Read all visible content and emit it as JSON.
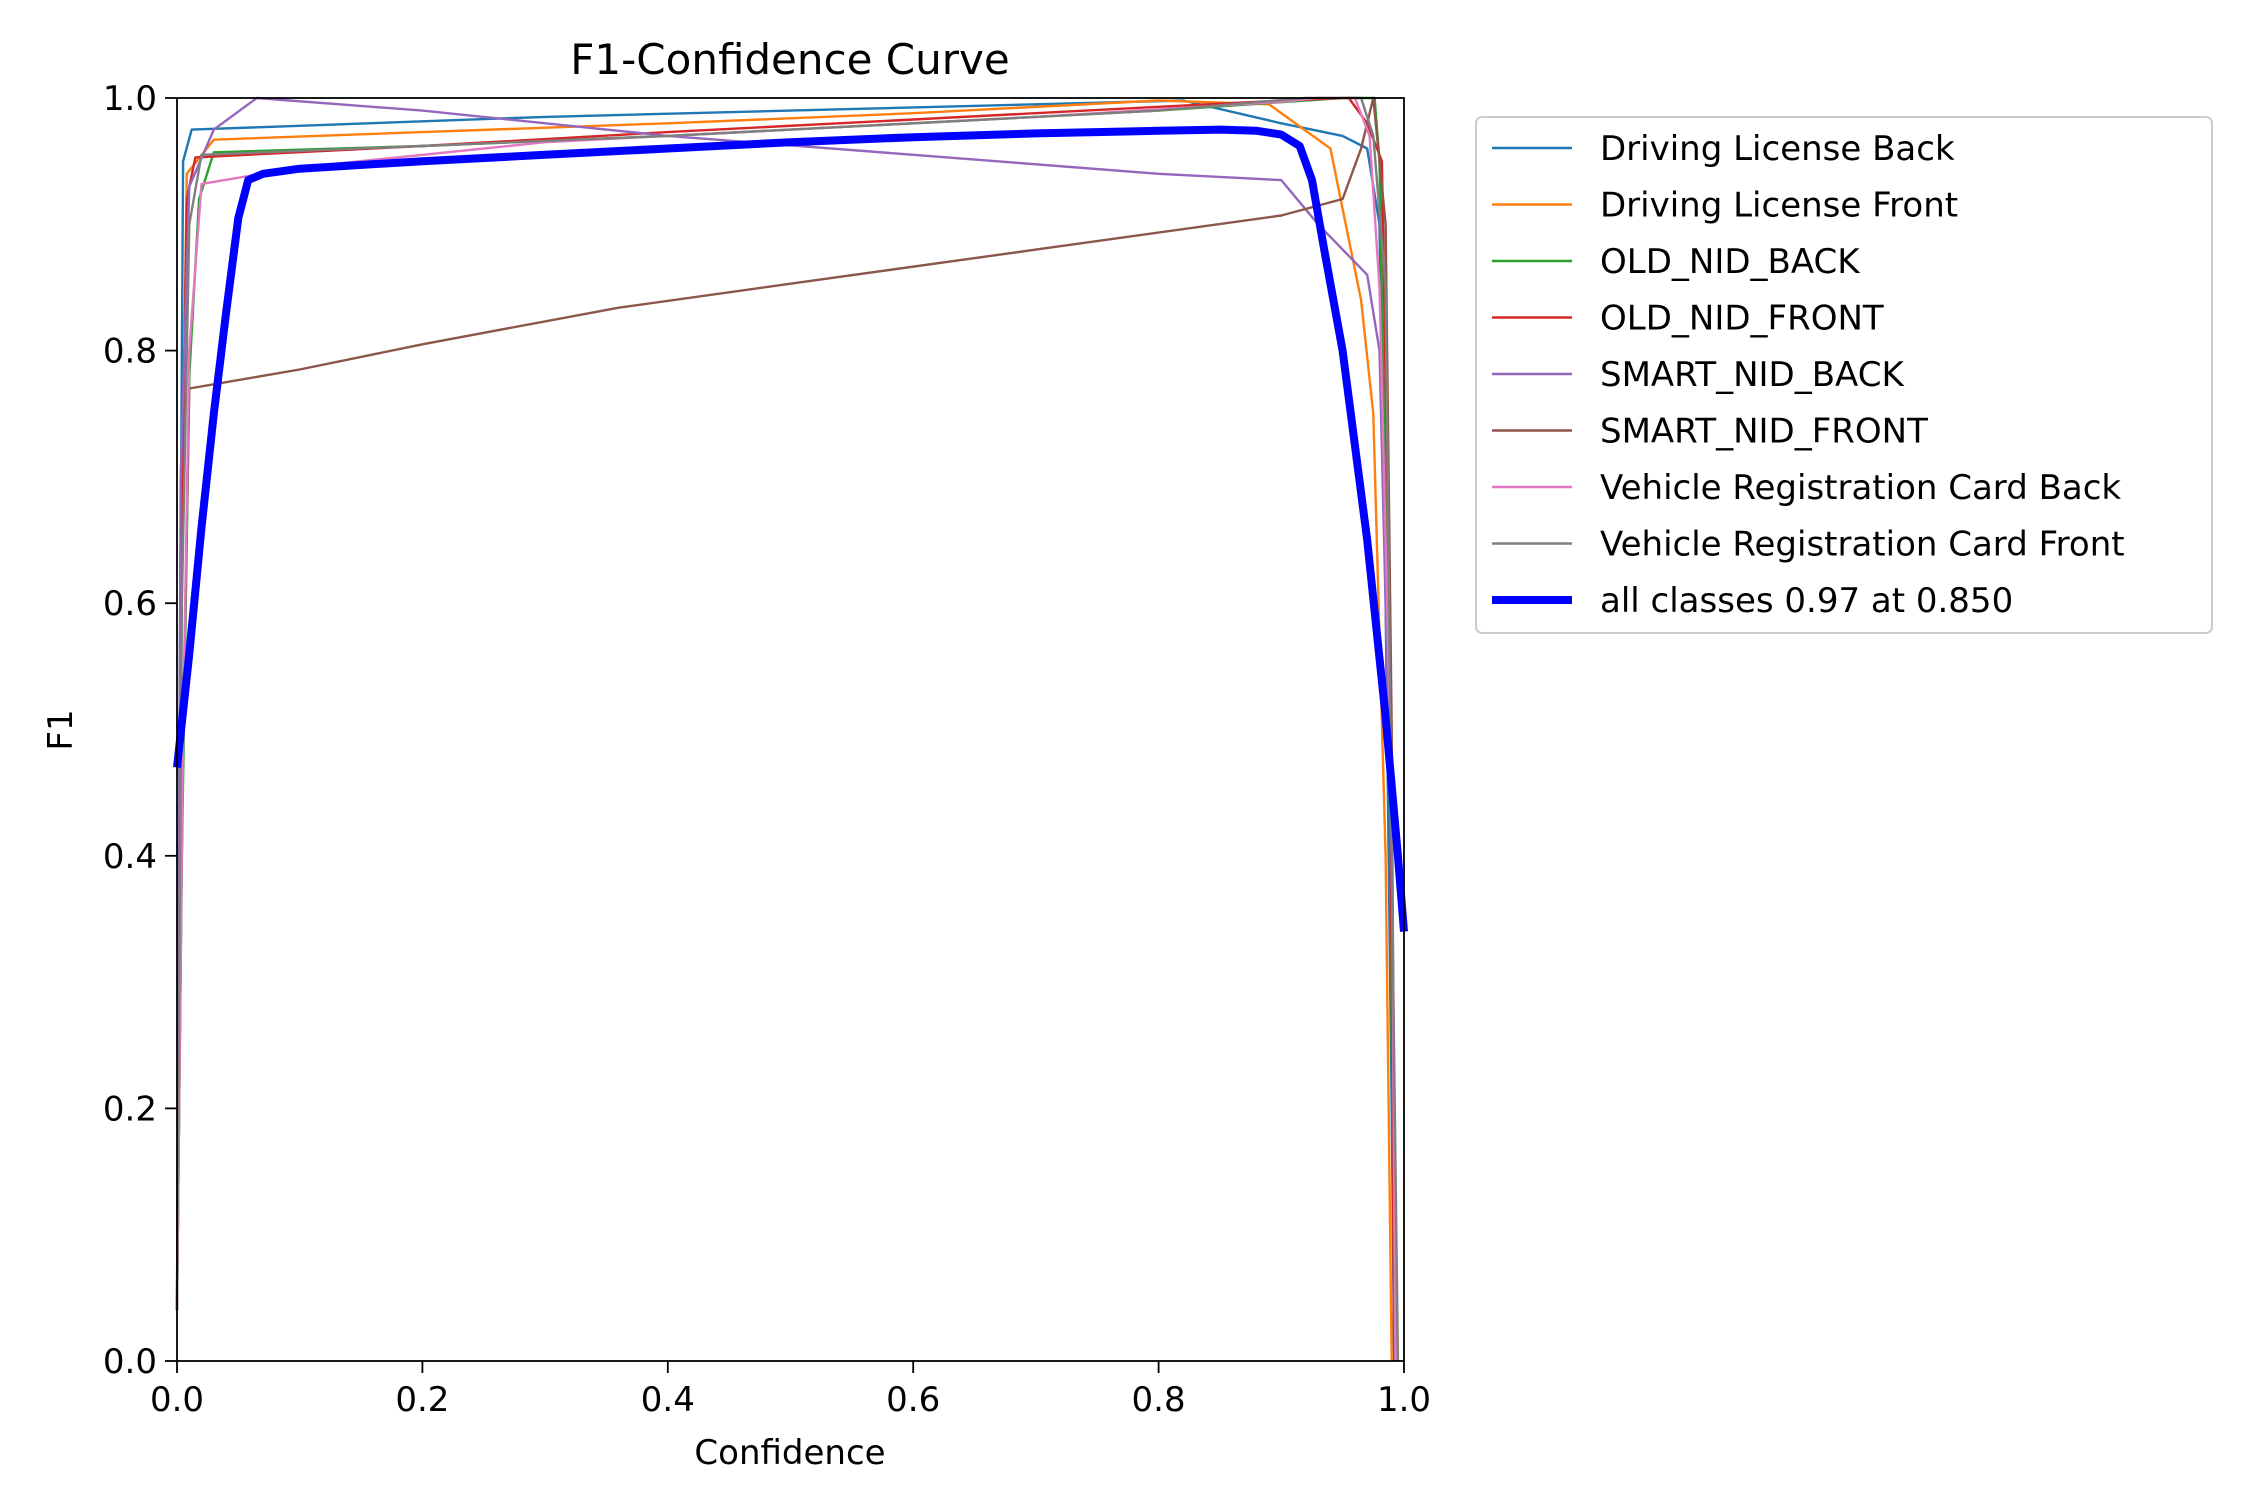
{
  "chart_data": {
    "type": "line",
    "title": "F1-Confidence Curve",
    "xlabel": "Confidence",
    "ylabel": "F1",
    "xlim": [
      0,
      1
    ],
    "ylim": [
      0,
      1
    ],
    "xticks": [
      "0.0",
      "0.2",
      "0.4",
      "0.6",
      "0.8",
      "1.0"
    ],
    "yticks": [
      "0.0",
      "0.2",
      "0.4",
      "0.6",
      "0.8",
      "1.0"
    ],
    "grid": false,
    "legend_position": "outside-upper-right",
    "series": [
      {
        "name": "Driving License Back",
        "color": "#1f77b4",
        "width": "thin",
        "points": [
          [
            0,
            0.04
          ],
          [
            0.002,
            0.5
          ],
          [
            0.005,
            0.95
          ],
          [
            0.012,
            0.975
          ],
          [
            0.1,
            0.978
          ],
          [
            0.3,
            0.985
          ],
          [
            0.5,
            0.99
          ],
          [
            0.7,
            0.995
          ],
          [
            0.82,
            0.998
          ],
          [
            0.9,
            0.98
          ],
          [
            0.95,
            0.97
          ],
          [
            0.97,
            0.96
          ],
          [
            0.98,
            0.9
          ],
          [
            0.985,
            0.6
          ],
          [
            0.99,
            0.2
          ],
          [
            0.992,
            0
          ]
        ]
      },
      {
        "name": "Driving License Front",
        "color": "#ff7f0e",
        "width": "thin",
        "points": [
          [
            0,
            0.04
          ],
          [
            0.003,
            0.6
          ],
          [
            0.008,
            0.94
          ],
          [
            0.03,
            0.967
          ],
          [
            0.2,
            0.973
          ],
          [
            0.4,
            0.98
          ],
          [
            0.6,
            0.988
          ],
          [
            0.8,
            0.998
          ],
          [
            0.89,
            0.995
          ],
          [
            0.94,
            0.96
          ],
          [
            0.965,
            0.84
          ],
          [
            0.975,
            0.75
          ],
          [
            0.985,
            0.4
          ],
          [
            0.99,
            0
          ]
        ]
      },
      {
        "name": "OLD_NID_BACK",
        "color": "#2ca02c",
        "width": "thin",
        "points": [
          [
            0,
            0.04
          ],
          [
            0.004,
            0.4
          ],
          [
            0.01,
            0.78
          ],
          [
            0.018,
            0.92
          ],
          [
            0.03,
            0.957
          ],
          [
            0.2,
            0.962
          ],
          [
            0.4,
            0.97
          ],
          [
            0.6,
            0.98
          ],
          [
            0.8,
            0.99
          ],
          [
            0.95,
            1.0
          ],
          [
            0.97,
            1.0
          ],
          [
            0.976,
            1.0
          ],
          [
            0.98,
            0.95
          ],
          [
            0.988,
            0.5
          ],
          [
            0.992,
            0
          ]
        ]
      },
      {
        "name": "OLD_NID_FRONT",
        "color": "#d62728",
        "width": "thin",
        "points": [
          [
            0,
            0.04
          ],
          [
            0.003,
            0.6
          ],
          [
            0.008,
            0.92
          ],
          [
            0.015,
            0.953
          ],
          [
            0.2,
            0.962
          ],
          [
            0.4,
            0.973
          ],
          [
            0.6,
            0.983
          ],
          [
            0.8,
            0.993
          ],
          [
            0.9,
            0.998
          ],
          [
            0.955,
            1.0
          ],
          [
            0.97,
            0.98
          ],
          [
            0.982,
            0.95
          ],
          [
            0.988,
            0.6
          ],
          [
            0.992,
            0
          ]
        ]
      },
      {
        "name": "SMART_NID_BACK",
        "color": "#9467bd",
        "width": "thin",
        "points": [
          [
            0,
            0.04
          ],
          [
            0.003,
            0.7
          ],
          [
            0.01,
            0.93
          ],
          [
            0.03,
            0.975
          ],
          [
            0.065,
            1.0
          ],
          [
            0.2,
            0.99
          ],
          [
            0.4,
            0.97
          ],
          [
            0.6,
            0.955
          ],
          [
            0.8,
            0.94
          ],
          [
            0.9,
            0.935
          ],
          [
            0.93,
            0.9
          ],
          [
            0.97,
            0.86
          ],
          [
            0.98,
            0.8
          ],
          [
            0.99,
            0.4
          ],
          [
            0.993,
            0
          ]
        ]
      },
      {
        "name": "SMART_NID_FRONT",
        "color": "#8c564b",
        "width": "thin",
        "points": [
          [
            0,
            0.04
          ],
          [
            0.005,
            0.5
          ],
          [
            0.01,
            0.77
          ],
          [
            0.1,
            0.785
          ],
          [
            0.2,
            0.805
          ],
          [
            0.36,
            0.834
          ],
          [
            0.5,
            0.853
          ],
          [
            0.7,
            0.88
          ],
          [
            0.9,
            0.907
          ],
          [
            0.95,
            0.92
          ],
          [
            0.965,
            0.96
          ],
          [
            0.975,
            1.0
          ],
          [
            0.98,
            0.95
          ],
          [
            0.985,
            0.9
          ],
          [
            0.99,
            0.5
          ],
          [
            0.993,
            0
          ]
        ]
      },
      {
        "name": "Vehicle Registration Card Back",
        "color": "#e377c2",
        "width": "thin",
        "points": [
          [
            0,
            0.04
          ],
          [
            0.005,
            0.5
          ],
          [
            0.01,
            0.8
          ],
          [
            0.02,
            0.932
          ],
          [
            0.1,
            0.945
          ],
          [
            0.3,
            0.965
          ],
          [
            0.5,
            0.975
          ],
          [
            0.7,
            0.985
          ],
          [
            0.9,
            0.997
          ],
          [
            0.93,
            1.0
          ],
          [
            0.96,
            1.0
          ],
          [
            0.972,
            0.97
          ],
          [
            0.98,
            0.85
          ],
          [
            0.99,
            0.45
          ],
          [
            0.993,
            0
          ]
        ]
      },
      {
        "name": "Vehicle Registration Card Front",
        "color": "#7f7f7f",
        "width": "thin",
        "points": [
          [
            0,
            0.04
          ],
          [
            0.004,
            0.6
          ],
          [
            0.01,
            0.9
          ],
          [
            0.02,
            0.955
          ],
          [
            0.2,
            0.962
          ],
          [
            0.4,
            0.97
          ],
          [
            0.6,
            0.98
          ],
          [
            0.8,
            0.99
          ],
          [
            0.92,
            1.0
          ],
          [
            0.965,
            1.0
          ],
          [
            0.975,
            0.97
          ],
          [
            0.985,
            0.85
          ],
          [
            0.99,
            0.4
          ],
          [
            0.995,
            0
          ]
        ]
      },
      {
        "name": "all classes 0.97 at 0.850",
        "color": "#0000ff",
        "width": "thick",
        "points": [
          [
            0,
            0.47
          ],
          [
            0.01,
            0.56
          ],
          [
            0.02,
            0.66
          ],
          [
            0.03,
            0.75
          ],
          [
            0.04,
            0.83
          ],
          [
            0.05,
            0.905
          ],
          [
            0.058,
            0.935
          ],
          [
            0.07,
            0.94
          ],
          [
            0.1,
            0.944
          ],
          [
            0.2,
            0.95
          ],
          [
            0.3,
            0.955
          ],
          [
            0.4,
            0.96
          ],
          [
            0.5,
            0.965
          ],
          [
            0.6,
            0.969
          ],
          [
            0.7,
            0.972
          ],
          [
            0.8,
            0.974
          ],
          [
            0.85,
            0.975
          ],
          [
            0.88,
            0.974
          ],
          [
            0.9,
            0.971
          ],
          [
            0.915,
            0.962
          ],
          [
            0.925,
            0.935
          ],
          [
            0.935,
            0.88
          ],
          [
            0.95,
            0.8
          ],
          [
            0.97,
            0.65
          ],
          [
            0.985,
            0.51
          ],
          [
            0.995,
            0.4
          ],
          [
            1.0,
            0.34
          ]
        ]
      }
    ]
  }
}
